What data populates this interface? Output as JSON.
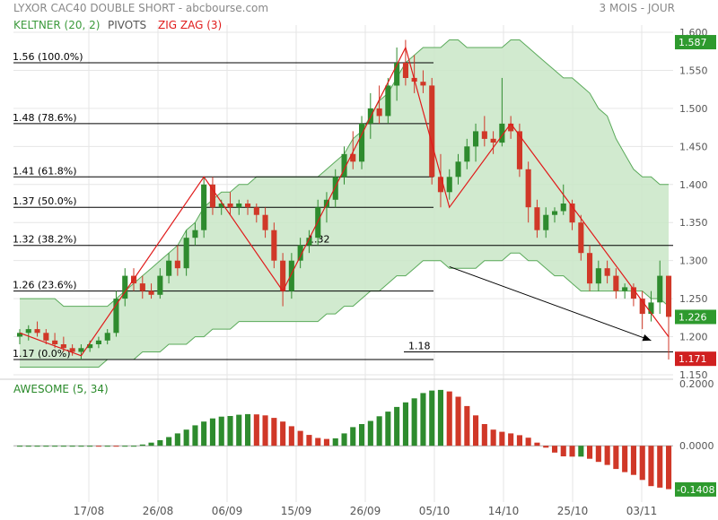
{
  "header": {
    "title": "LYXOR CAC40 DOUBLE SHORT - abcbourse.com",
    "period": "3 MOIS - JOUR"
  },
  "legend": [
    {
      "label": "KELTNER (20, 2)",
      "color": "#3c9a3c"
    },
    {
      "label": "PIVOTS",
      "color": "#555555"
    },
    {
      "label": "ZIG ZAG (3)",
      "color": "#e01b1b"
    }
  ],
  "indicator_label": "AWESOME (5, 34)",
  "colors": {
    "up": "#2e8b2e",
    "down": "#d03828",
    "band": "#c9e6c7",
    "band_line": "#5aaa5a",
    "zigzag": "#e01b1b",
    "fib": "#000000",
    "grid": "#e6e6e6",
    "last_price_box": "#2e9a2e",
    "low_box": "#d02020"
  },
  "chart_data": {
    "type": "candlestick",
    "x_ticks": [
      "17/08",
      "26/08",
      "06/09",
      "15/09",
      "26/09",
      "05/10",
      "14/10",
      "25/10",
      "03/11"
    ],
    "price_ticks": [
      "1.600",
      "1.550",
      "1.500",
      "1.450",
      "1.400",
      "1.350",
      "1.300",
      "1.250",
      "1.200",
      "1.150"
    ],
    "price_range": [
      1.15,
      1.6
    ],
    "price_labels": {
      "last": "1.226",
      "high": "1.587",
      "low": "1.171"
    },
    "fib_levels": [
      {
        "label": "1.56 (100.0%)",
        "value": 1.56
      },
      {
        "label": "1.48 (78.6%)",
        "value": 1.48
      },
      {
        "label": "1.41 (61.8%)",
        "value": 1.41
      },
      {
        "label": "1.37 (50.0%)",
        "value": 1.37
      },
      {
        "label": "1.32 (38.2%)",
        "value": 1.32
      },
      {
        "label": "1.26 (23.6%)",
        "value": 1.26
      },
      {
        "label": "1.17 (0.0%)",
        "value": 1.17
      }
    ],
    "pivot_annotations": [
      {
        "label": "1.32",
        "value": 1.32
      },
      {
        "label": "1.18",
        "value": 1.18
      }
    ],
    "ohlc": [
      [
        1.2,
        1.21,
        1.19,
        1.205
      ],
      [
        1.205,
        1.215,
        1.195,
        1.21
      ],
      [
        1.21,
        1.22,
        1.2,
        1.205
      ],
      [
        1.205,
        1.21,
        1.19,
        1.195
      ],
      [
        1.195,
        1.205,
        1.185,
        1.19
      ],
      [
        1.19,
        1.2,
        1.18,
        1.185
      ],
      [
        1.185,
        1.19,
        1.175,
        1.18
      ],
      [
        1.18,
        1.19,
        1.17,
        1.185
      ],
      [
        1.185,
        1.195,
        1.18,
        1.19
      ],
      [
        1.19,
        1.2,
        1.185,
        1.195
      ],
      [
        1.195,
        1.21,
        1.19,
        1.205
      ],
      [
        1.205,
        1.26,
        1.2,
        1.25
      ],
      [
        1.25,
        1.29,
        1.24,
        1.28
      ],
      [
        1.28,
        1.29,
        1.26,
        1.27
      ],
      [
        1.27,
        1.28,
        1.25,
        1.26
      ],
      [
        1.26,
        1.27,
        1.25,
        1.255
      ],
      [
        1.255,
        1.29,
        1.25,
        1.28
      ],
      [
        1.28,
        1.31,
        1.27,
        1.3
      ],
      [
        1.3,
        1.32,
        1.28,
        1.29
      ],
      [
        1.29,
        1.34,
        1.28,
        1.33
      ],
      [
        1.33,
        1.35,
        1.32,
        1.34
      ],
      [
        1.34,
        1.41,
        1.33,
        1.4
      ],
      [
        1.4,
        1.41,
        1.36,
        1.37
      ],
      [
        1.37,
        1.38,
        1.36,
        1.375
      ],
      [
        1.375,
        1.39,
        1.36,
        1.37
      ],
      [
        1.37,
        1.38,
        1.36,
        1.375
      ],
      [
        1.375,
        1.38,
        1.36,
        1.37
      ],
      [
        1.37,
        1.375,
        1.35,
        1.36
      ],
      [
        1.36,
        1.37,
        1.33,
        1.34
      ],
      [
        1.34,
        1.35,
        1.29,
        1.3
      ],
      [
        1.3,
        1.31,
        1.24,
        1.26
      ],
      [
        1.26,
        1.31,
        1.25,
        1.3
      ],
      [
        1.3,
        1.33,
        1.29,
        1.32
      ],
      [
        1.32,
        1.34,
        1.31,
        1.33
      ],
      [
        1.33,
        1.38,
        1.32,
        1.37
      ],
      [
        1.37,
        1.39,
        1.35,
        1.38
      ],
      [
        1.38,
        1.42,
        1.37,
        1.41
      ],
      [
        1.41,
        1.45,
        1.4,
        1.44
      ],
      [
        1.44,
        1.47,
        1.42,
        1.43
      ],
      [
        1.43,
        1.49,
        1.42,
        1.48
      ],
      [
        1.48,
        1.52,
        1.46,
        1.5
      ],
      [
        1.5,
        1.53,
        1.48,
        1.49
      ],
      [
        1.49,
        1.54,
        1.48,
        1.53
      ],
      [
        1.53,
        1.58,
        1.51,
        1.56
      ],
      [
        1.56,
        1.59,
        1.53,
        1.54
      ],
      [
        1.54,
        1.57,
        1.52,
        1.535
      ],
      [
        1.535,
        1.55,
        1.52,
        1.53
      ],
      [
        1.53,
        1.54,
        1.4,
        1.41
      ],
      [
        1.41,
        1.44,
        1.37,
        1.39
      ],
      [
        1.39,
        1.42,
        1.38,
        1.41
      ],
      [
        1.41,
        1.44,
        1.4,
        1.43
      ],
      [
        1.43,
        1.46,
        1.42,
        1.45
      ],
      [
        1.45,
        1.48,
        1.43,
        1.47
      ],
      [
        1.47,
        1.49,
        1.45,
        1.46
      ],
      [
        1.46,
        1.47,
        1.44,
        1.455
      ],
      [
        1.455,
        1.54,
        1.45,
        1.48
      ],
      [
        1.48,
        1.49,
        1.46,
        1.47
      ],
      [
        1.47,
        1.48,
        1.41,
        1.42
      ],
      [
        1.42,
        1.43,
        1.35,
        1.37
      ],
      [
        1.37,
        1.38,
        1.33,
        1.34
      ],
      [
        1.34,
        1.37,
        1.33,
        1.36
      ],
      [
        1.36,
        1.37,
        1.35,
        1.365
      ],
      [
        1.365,
        1.4,
        1.36,
        1.375
      ],
      [
        1.375,
        1.38,
        1.34,
        1.35
      ],
      [
        1.35,
        1.36,
        1.3,
        1.31
      ],
      [
        1.31,
        1.32,
        1.26,
        1.27
      ],
      [
        1.27,
        1.3,
        1.26,
        1.29
      ],
      [
        1.29,
        1.3,
        1.27,
        1.28
      ],
      [
        1.28,
        1.29,
        1.25,
        1.26
      ],
      [
        1.26,
        1.27,
        1.25,
        1.265
      ],
      [
        1.265,
        1.27,
        1.24,
        1.25
      ],
      [
        1.25,
        1.26,
        1.21,
        1.23
      ],
      [
        1.23,
        1.26,
        1.22,
        1.245
      ],
      [
        1.245,
        1.3,
        1.23,
        1.28
      ],
      [
        1.28,
        1.28,
        1.17,
        1.226
      ]
    ],
    "keltner_upper": [
      1.25,
      1.25,
      1.25,
      1.25,
      1.25,
      1.24,
      1.24,
      1.24,
      1.24,
      1.24,
      1.24,
      1.25,
      1.26,
      1.27,
      1.28,
      1.29,
      1.3,
      1.31,
      1.32,
      1.34,
      1.35,
      1.37,
      1.38,
      1.39,
      1.39,
      1.4,
      1.4,
      1.41,
      1.41,
      1.41,
      1.41,
      1.41,
      1.41,
      1.41,
      1.41,
      1.42,
      1.43,
      1.44,
      1.46,
      1.47,
      1.49,
      1.51,
      1.52,
      1.54,
      1.56,
      1.57,
      1.58,
      1.58,
      1.58,
      1.59,
      1.59,
      1.58,
      1.58,
      1.58,
      1.58,
      1.58,
      1.59,
      1.59,
      1.58,
      1.57,
      1.56,
      1.55,
      1.54,
      1.54,
      1.53,
      1.52,
      1.5,
      1.49,
      1.46,
      1.44,
      1.42,
      1.41,
      1.41,
      1.4,
      1.4
    ],
    "keltner_lower": [
      1.16,
      1.16,
      1.16,
      1.16,
      1.16,
      1.16,
      1.16,
      1.16,
      1.16,
      1.16,
      1.17,
      1.17,
      1.17,
      1.17,
      1.18,
      1.18,
      1.18,
      1.19,
      1.19,
      1.19,
      1.2,
      1.2,
      1.21,
      1.21,
      1.21,
      1.22,
      1.22,
      1.22,
      1.22,
      1.22,
      1.22,
      1.22,
      1.22,
      1.22,
      1.22,
      1.23,
      1.23,
      1.24,
      1.24,
      1.25,
      1.26,
      1.26,
      1.27,
      1.28,
      1.28,
      1.29,
      1.3,
      1.3,
      1.3,
      1.29,
      1.29,
      1.29,
      1.29,
      1.3,
      1.3,
      1.3,
      1.31,
      1.31,
      1.3,
      1.3,
      1.29,
      1.28,
      1.28,
      1.27,
      1.26,
      1.26,
      1.26,
      1.26,
      1.26,
      1.26,
      1.26,
      1.26,
      1.25,
      1.25,
      1.24
    ],
    "zigzag": [
      [
        0,
        1.205
      ],
      [
        7,
        1.175
      ],
      [
        21,
        1.41
      ],
      [
        30,
        1.26
      ],
      [
        44,
        1.58
      ],
      [
        49,
        1.37
      ],
      [
        56,
        1.48
      ],
      [
        74,
        1.2
      ]
    ],
    "trend_arrow": {
      "from": [
        49,
        1.292
      ],
      "to": [
        72,
        1.195
      ]
    },
    "ao_ticks": [
      "0.2000",
      "0.0000",
      "-0.1408"
    ],
    "ao_range": [
      -0.17,
      0.2
    ],
    "ao_last": -0.1408,
    "awesome": [
      0,
      0,
      0,
      0,
      0,
      0,
      0,
      0,
      0,
      -0.002,
      -0.002,
      -0.003,
      -0.002,
      0,
      0.004,
      0.01,
      0.018,
      0.028,
      0.04,
      0.052,
      0.066,
      0.078,
      0.088,
      0.094,
      0.096,
      0.1,
      0.102,
      0.101,
      0.098,
      0.09,
      0.078,
      0.063,
      0.048,
      0.035,
      0.025,
      0.022,
      0.024,
      0.04,
      0.06,
      0.07,
      0.08,
      0.095,
      0.11,
      0.125,
      0.14,
      0.153,
      0.17,
      0.178,
      0.18,
      0.175,
      0.158,
      0.128,
      0.098,
      0.07,
      0.052,
      0.045,
      0.04,
      0.034,
      0.026,
      0.01,
      -0.006,
      -0.022,
      -0.034,
      -0.035,
      -0.035,
      -0.042,
      -0.052,
      -0.062,
      -0.075,
      -0.085,
      -0.094,
      -0.11,
      -0.13,
      -0.135,
      -0.14
    ]
  }
}
